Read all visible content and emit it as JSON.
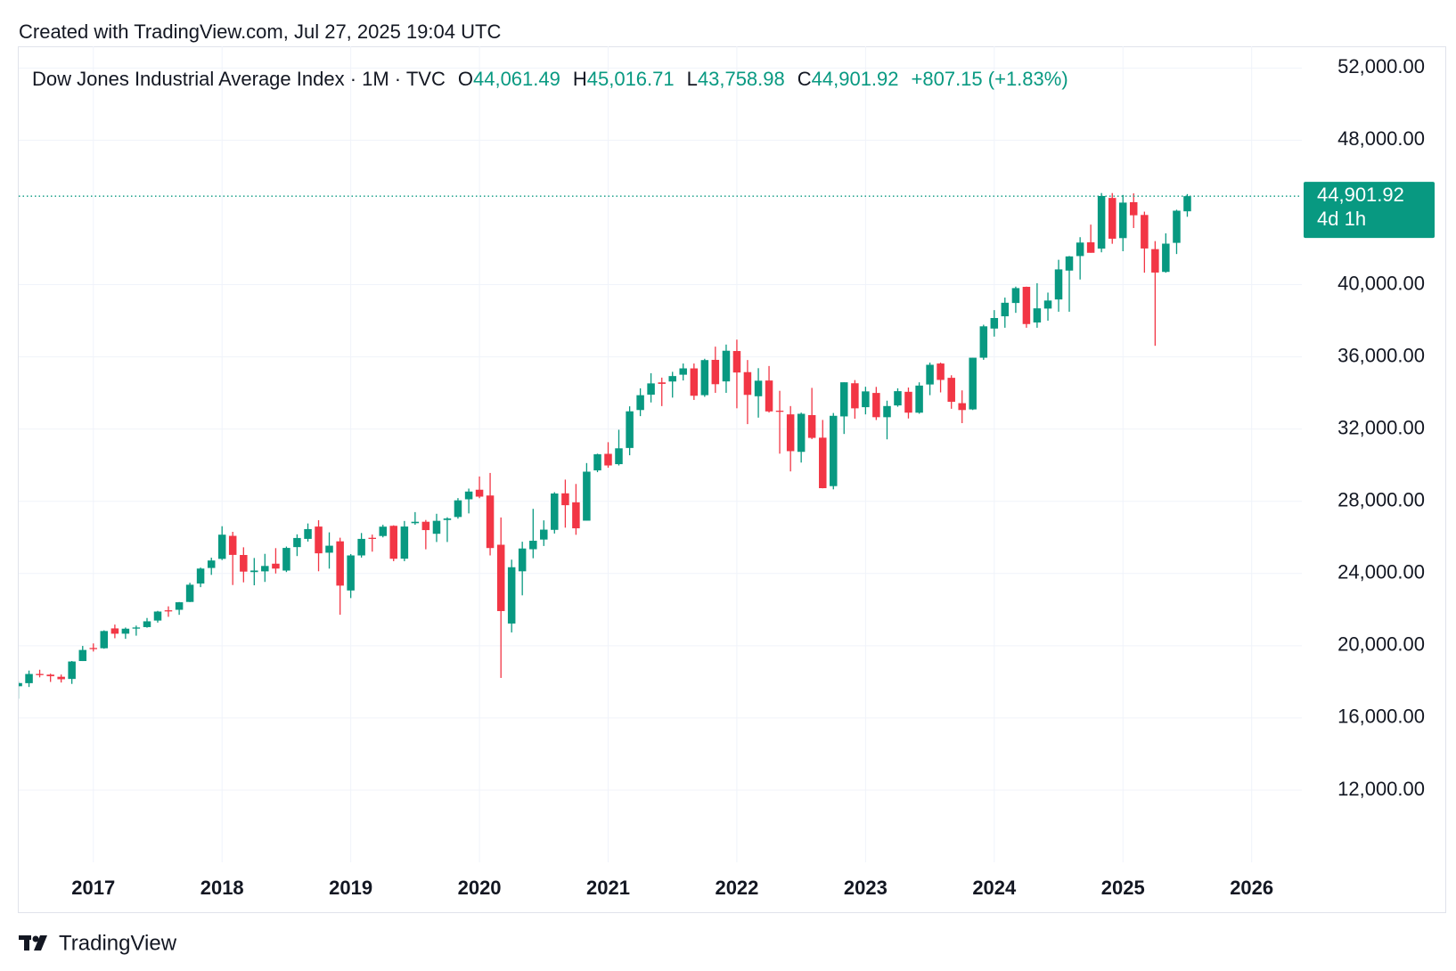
{
  "header": "Created with TradingView.com, Jul 27, 2025 19:04 UTC",
  "footer_brand": "TradingView",
  "chart_data": {
    "type": "candlestick",
    "title": "Dow Jones Industrial Average Index · 1M · TVC",
    "legend": [
      {
        "key": "O",
        "value": "44,061.49"
      },
      {
        "key": "H",
        "value": "45,016.71"
      },
      {
        "key": "L",
        "value": "43,758.98"
      },
      {
        "key": "C",
        "value": "44,901.92"
      }
    ],
    "change": "+807.15 (+1.83%)",
    "price_label": {
      "value": 44901.92,
      "label": "44,901.92"
    },
    "countdown": "4d 1h",
    "up_color": "#089981",
    "down_color": "#f23645",
    "grid": true,
    "xlim": [
      2016.42,
      2026.39
    ],
    "xticks": [
      2017,
      2018,
      2019,
      2020,
      2021,
      2022,
      2023,
      2024,
      2025,
      2026
    ],
    "ylim": [
      8000,
      53200
    ],
    "yticks": [
      {
        "value": 12000,
        "label": "12,000.00"
      },
      {
        "value": 16000,
        "label": "16,000.00"
      },
      {
        "value": 20000,
        "label": "20,000.00"
      },
      {
        "value": 24000,
        "label": "24,000.00"
      },
      {
        "value": 28000,
        "label": "28,000.00"
      },
      {
        "value": 32000,
        "label": "32,000.00"
      },
      {
        "value": 36000,
        "label": "36,000.00"
      },
      {
        "value": 40000,
        "label": "40,000.00"
      },
      {
        "value": 48000,
        "label": "48,000.00"
      },
      {
        "value": 52000,
        "label": "52,000.00"
      }
    ],
    "x": [
      2016.417,
      2016.5,
      2016.583,
      2016.667,
      2016.75,
      2016.833,
      2016.917,
      2017,
      2017.083,
      2017.167,
      2017.25,
      2017.333,
      2017.417,
      2017.5,
      2017.583,
      2017.667,
      2017.75,
      2017.833,
      2017.917,
      2018,
      2018.083,
      2018.167,
      2018.25,
      2018.333,
      2018.417,
      2018.5,
      2018.583,
      2018.667,
      2018.75,
      2018.833,
      2018.917,
      2019,
      2019.083,
      2019.167,
      2019.25,
      2019.333,
      2019.417,
      2019.5,
      2019.583,
      2019.667,
      2019.75,
      2019.833,
      2019.917,
      2020,
      2020.083,
      2020.167,
      2020.25,
      2020.333,
      2020.417,
      2020.5,
      2020.583,
      2020.667,
      2020.75,
      2020.833,
      2020.917,
      2021,
      2021.083,
      2021.167,
      2021.25,
      2021.333,
      2021.417,
      2021.5,
      2021.583,
      2021.667,
      2021.75,
      2021.833,
      2021.917,
      2022,
      2022.083,
      2022.167,
      2022.25,
      2022.333,
      2022.417,
      2022.5,
      2022.583,
      2022.667,
      2022.75,
      2022.833,
      2022.917,
      2023,
      2023.083,
      2023.167,
      2023.25,
      2023.333,
      2023.417,
      2023.5,
      2023.583,
      2023.667,
      2023.75,
      2023.833,
      2023.917,
      2024,
      2024.083,
      2024.167,
      2024.25,
      2024.333,
      2024.417,
      2024.5,
      2024.583,
      2024.667,
      2024.75,
      2024.833,
      2024.917,
      2025,
      2025.083,
      2025.167,
      2025.25,
      2025.333,
      2025.417,
      2025.5
    ],
    "open": [
      17754,
      17924,
      18434,
      18396,
      18279,
      18158,
      19150,
      19873,
      19858,
      20957,
      20665,
      20962,
      21030,
      21392,
      21961,
      21988,
      22423,
      23442,
      24305,
      24809,
      26084,
      25024,
      24076,
      24117,
      24542,
      24161,
      25461,
      25916,
      26598,
      25151,
      25780,
      23058,
      24999,
      25977,
      26075,
      26640,
      24819,
      26786,
      26864,
      26198,
      26963,
      27129,
      28109,
      28639,
      28319,
      25591,
      21227,
      24120,
      25342,
      25879,
      26416,
      28439,
      27941,
      26925,
      29711,
      30627,
      30055,
      30952,
      33054,
      33904,
      34584,
      34633,
      35010,
      35360,
      33877,
      35833,
      34639,
      36322,
      35153,
      33817,
      34688,
      33018,
      32813,
      30737,
      32772,
      31522,
      28839,
      32700,
      34536,
      33211,
      34000,
      32656,
      33309,
      34063,
      32906,
      34469,
      35630,
      34838,
      33434,
      33088,
      35951,
      37567,
      38246,
      38983,
      39878,
      37903,
      38673,
      39178,
      40777,
      41583,
      42343,
      41995,
      44803,
      42577,
      44567,
      43859,
      41966,
      40704,
      42314,
      44061.49
    ],
    "high": [
      18016,
      18622,
      18668,
      18450,
      18400,
      19152,
      19988,
      20125,
      20851,
      21169,
      21006,
      21113,
      21535,
      21929,
      22179,
      22420,
      23485,
      24328,
      24876,
      26617,
      26307,
      25450,
      24858,
      25087,
      25403,
      25491,
      26168,
      26770,
      26952,
      26277,
      25981,
      25075,
      26241,
      26155,
      26696,
      26668,
      26908,
      27399,
      26964,
      27306,
      27113,
      28175,
      28702,
      29373,
      29568,
      27102,
      24765,
      25758,
      27580,
      26941,
      28502,
      29199,
      28958,
      30116,
      30637,
      31272,
      31961,
      33259,
      34257,
      35091,
      34849,
      35171,
      35631,
      35631,
      35892,
      36565,
      36680,
      36953,
      35824,
      35372,
      35492,
      34118,
      33273,
      32910,
      34281,
      32504,
      32889,
      34590,
      34712,
      34342,
      34335,
      33572,
      34257,
      34300,
      34588,
      35679,
      35679,
      34979,
      34142,
      35954,
      37778,
      38587,
      39282,
      39889,
      39889,
      40077,
      39559,
      41376,
      41585,
      42628,
      43325,
      45074,
      45073,
      44966,
      45054,
      44043,
      42410,
      42842,
      44150,
      45016.71
    ],
    "low": [
      17063,
      17713,
      18247,
      17992,
      17959,
      17883,
      19150,
      19677,
      19831,
      20412,
      20379,
      20554,
      20996,
      21279,
      21600,
      21709,
      22416,
      23242,
      23922,
      24742,
      23361,
      23509,
      23345,
      23532,
      23998,
      24077,
      24965,
      25766,
      24122,
      24268,
      21713,
      22638,
      24879,
      25208,
      25999,
      24680,
      24680,
      26697,
      25339,
      25743,
      25743,
      27035,
      27326,
      28170,
      25000,
      18213,
      20735,
      22789,
      24843,
      25523,
      26212,
      26537,
      26143,
      26925,
      29611,
      29856,
      29981,
      30548,
      32716,
      33473,
      33271,
      33741,
      34690,
      33613,
      33785,
      34006,
      34006,
      33150,
      32273,
      32632,
      32913,
      30636,
      29653,
      30143,
      31442,
      28715,
      28660,
      31727,
      32573,
      32812,
      32500,
      31429,
      33235,
      32586,
      32849,
      33876,
      34029,
      33123,
      32327,
      33054,
      35835,
      37122,
      37612,
      38437,
      37612,
      37611,
      38003,
      38499,
      38499,
      40284,
      41766,
      41790,
      42262,
      41850,
      43136,
      40661,
      36612,
      40660,
      41695,
      43758.98
    ],
    "close": [
      17930,
      18432,
      18401,
      18308,
      18142,
      19124,
      19763,
      19864,
      20812,
      20663,
      20941,
      21009,
      21350,
      21891,
      21948,
      22405,
      23377,
      24272,
      24719,
      26149,
      25029,
      24103,
      24163,
      24416,
      24271,
      25415,
      25965,
      26458,
      25116,
      25538,
      23327,
      24999,
      25916,
      25929,
      26593,
      24815,
      26600,
      26864,
      26403,
      26917,
      27046,
      28051,
      28538,
      28256,
      25409,
      21917,
      24346,
      25383,
      25813,
      26428,
      28430,
      27782,
      26502,
      29639,
      30606,
      29983,
      30932,
      32982,
      33875,
      34529,
      34503,
      34935,
      35361,
      33844,
      35820,
      34484,
      36338,
      35132,
      33893,
      34678,
      32977,
      32990,
      30775,
      32845,
      31510,
      28725,
      32733,
      34590,
      33147,
      34086,
      32657,
      33274,
      34098,
      32908,
      34408,
      35560,
      34722,
      33508,
      33053,
      35951,
      37690,
      38150,
      38996,
      39807,
      37816,
      38686,
      39119,
      40843,
      41563,
      42330,
      41763,
      44911,
      42544,
      44544,
      43841,
      42002,
      40669,
      42270,
      44095,
      44901.92
    ]
  }
}
